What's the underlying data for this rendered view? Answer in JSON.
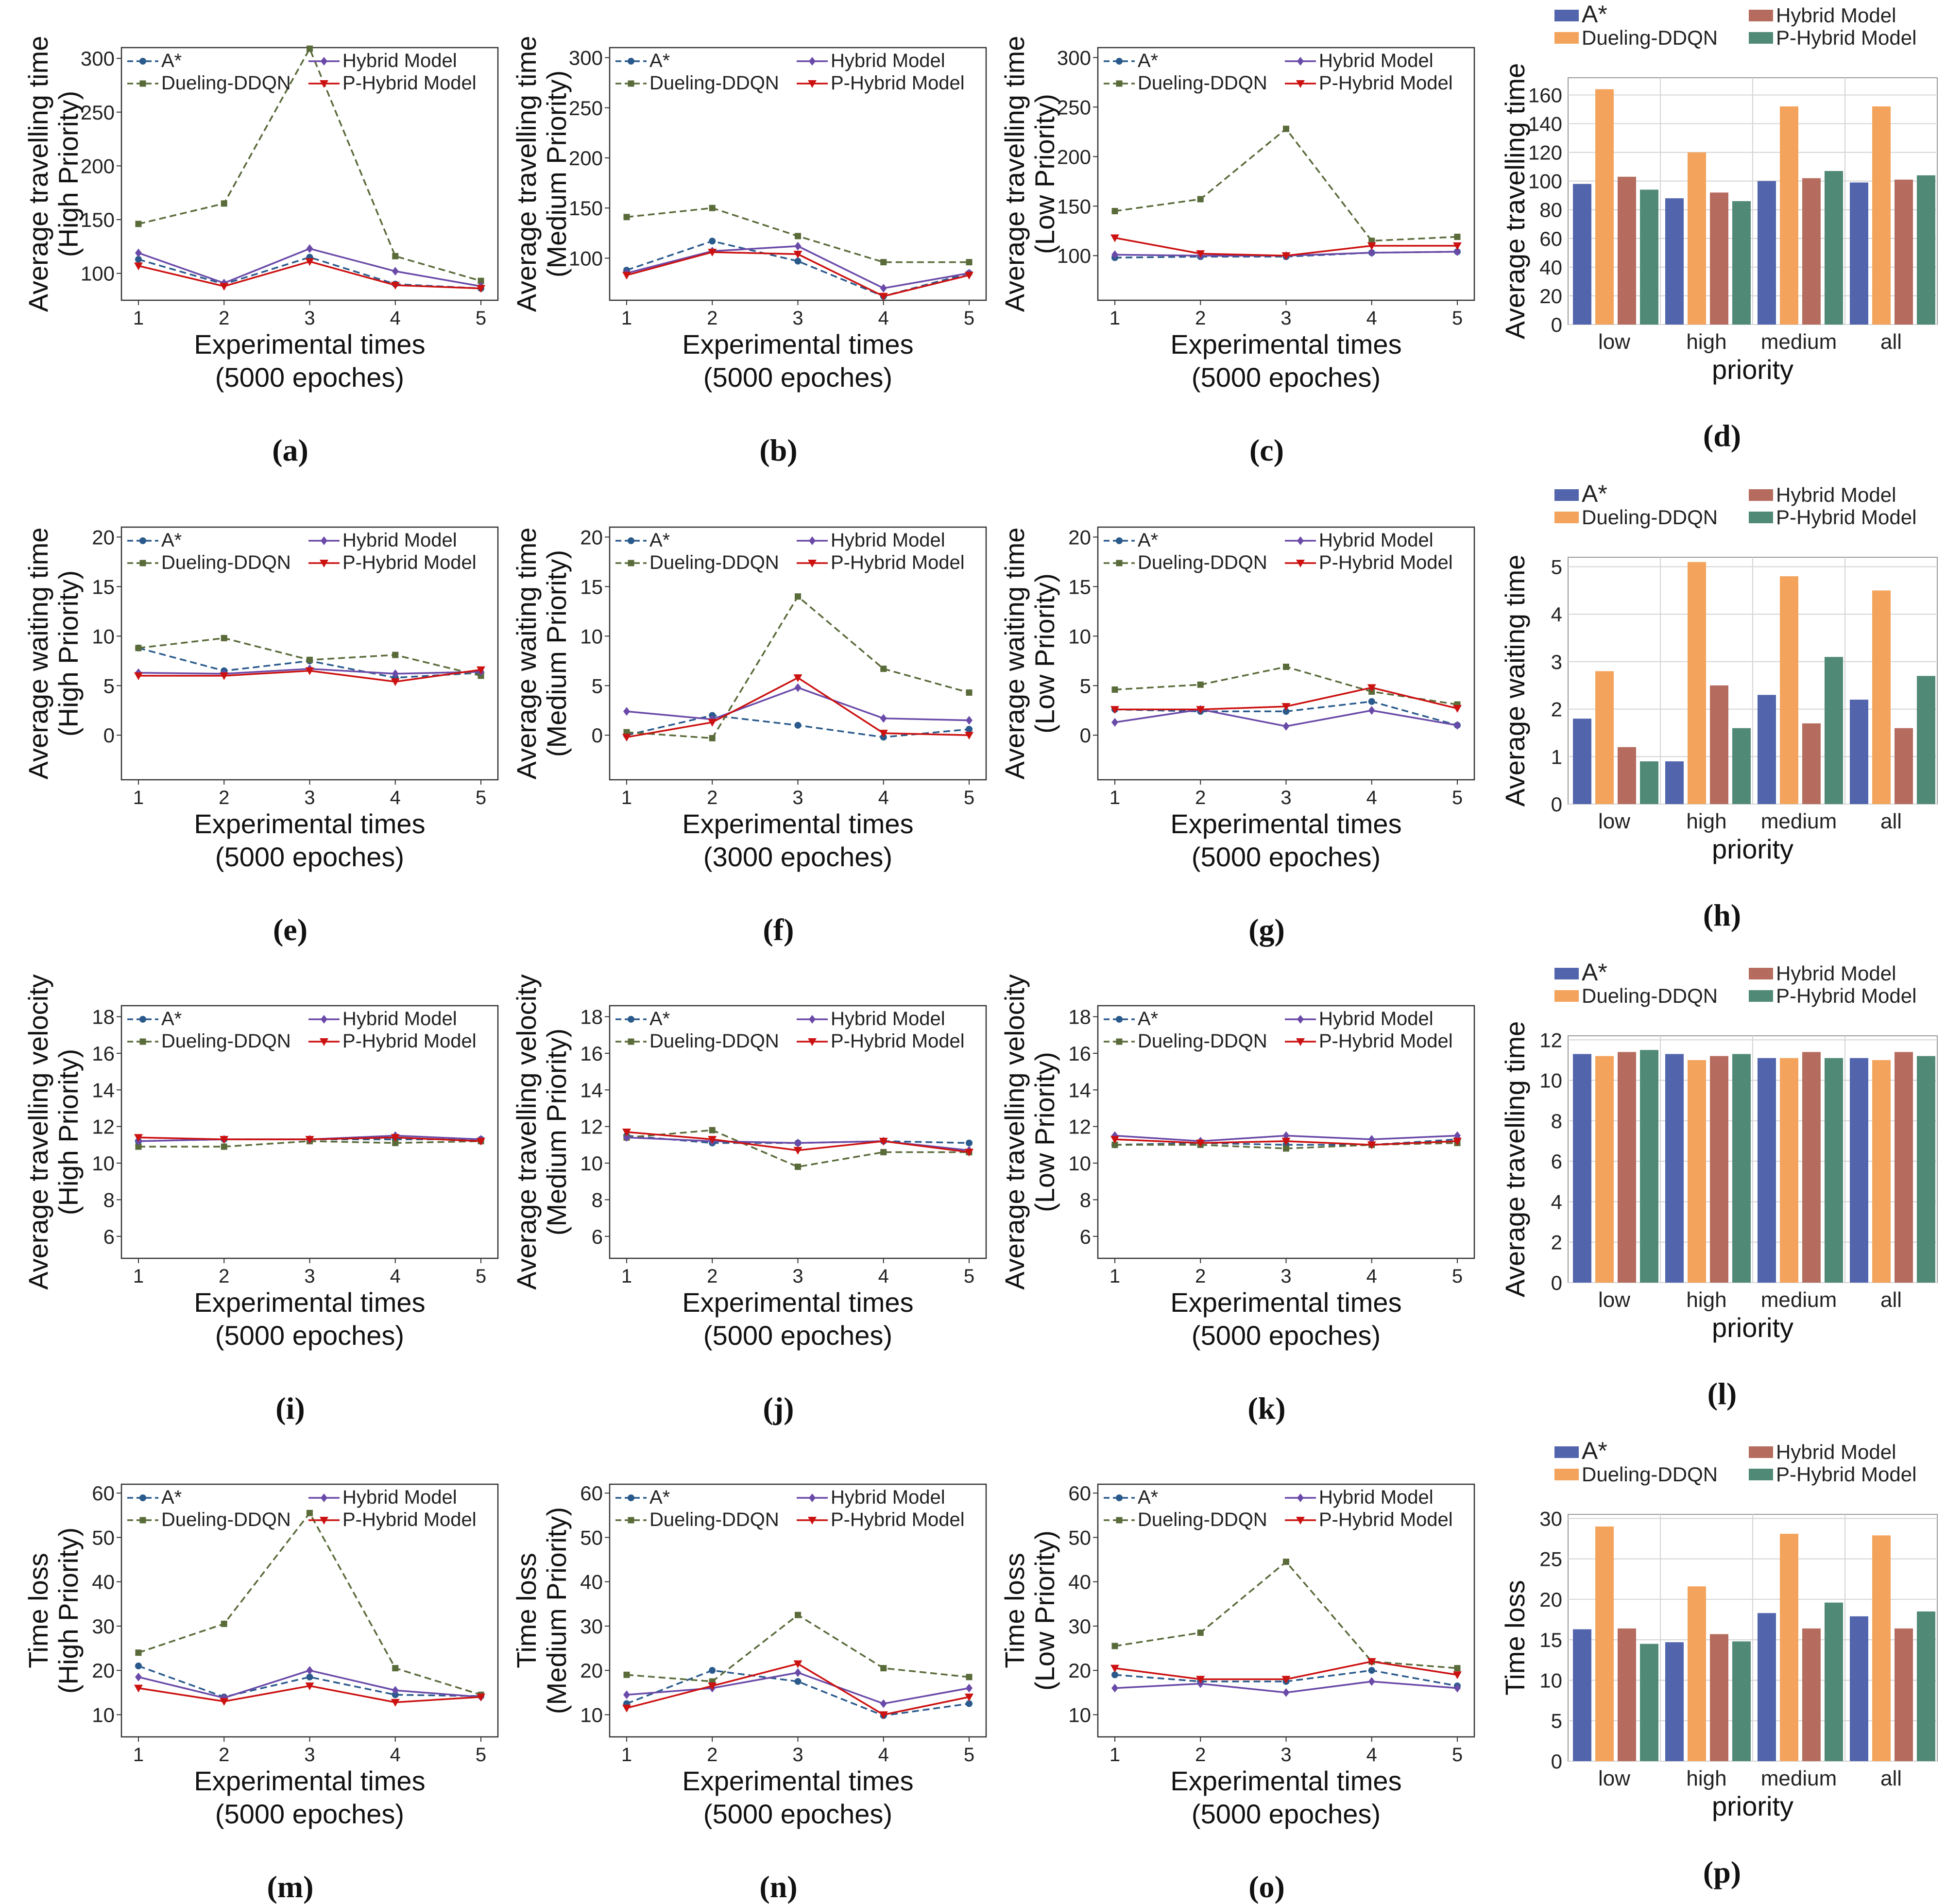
{
  "series_names": [
    "A*",
    "Dueling-DDQN",
    "Hybrid Model",
    "P-Hybrid Model"
  ],
  "line_colors": {
    "A*": "#2a5a8c",
    "Dueling-DDQN": "#5a6b3a",
    "Hybrid Model": "#6a4aa8",
    "P-Hybrid Model": "#cc1111"
  },
  "bar_colors": {
    "A*": "#5264ac",
    "Dueling-DDQN": "#f4a35c",
    "Hybrid Model": "#b56c5e",
    "P-Hybrid Model": "#508a76"
  },
  "icons": {
    "A*": "circle-marker-icon",
    "Dueling-DDQN": "square-marker-icon",
    "Hybrid Model": "diamond-marker-icon",
    "P-Hybrid Model": "triangle-down-marker-icon"
  },
  "chart_data": [
    {
      "id": "a",
      "letter": "(a)",
      "type": "line",
      "xlabel": "Experimental times",
      "xlabel2": "(5000 epoches)",
      "ylabel": "Average travelling time",
      "ylabel2": "(High Priority)",
      "ylim": [
        75,
        310
      ],
      "yticks": [
        100,
        150,
        200,
        250,
        300
      ],
      "x": [
        1,
        2,
        3,
        4,
        5
      ],
      "series": [
        {
          "name": "A*",
          "values": [
            113,
            90,
            115,
            90,
            86
          ]
        },
        {
          "name": "Dueling-DDQN",
          "values": [
            146,
            165,
            309,
            116,
            93
          ]
        },
        {
          "name": "Hybrid Model",
          "values": [
            119,
            91,
            123,
            102,
            88
          ]
        },
        {
          "name": "P-Hybrid Model",
          "values": [
            107,
            88,
            111,
            89,
            86
          ]
        }
      ]
    },
    {
      "id": "b",
      "letter": "(b)",
      "type": "line",
      "xlabel": "Experimental times",
      "xlabel2": "(5000 epoches)",
      "ylabel": "Average travelling time",
      "ylabel2": "(Medium Priority)",
      "ylim": [
        58,
        310
      ],
      "yticks": [
        100,
        150,
        200,
        250,
        300
      ],
      "x": [
        1,
        2,
        3,
        4,
        5
      ],
      "series": [
        {
          "name": "A*",
          "values": [
            88,
            117,
            97,
            62,
            85
          ]
        },
        {
          "name": "Dueling-DDQN",
          "values": [
            141,
            150,
            122,
            96,
            96
          ]
        },
        {
          "name": "Hybrid Model",
          "values": [
            85,
            107,
            112,
            70,
            85
          ]
        },
        {
          "name": "P-Hybrid Model",
          "values": [
            83,
            106,
            104,
            62,
            83
          ]
        }
      ]
    },
    {
      "id": "c",
      "letter": "(c)",
      "type": "line",
      "xlabel": "Experimental times",
      "xlabel2": "(5000 epoches)",
      "ylabel": "Average travelling time",
      "ylabel2": "(Low Priority)",
      "ylim": [
        55,
        310
      ],
      "yticks": [
        100,
        150,
        200,
        250,
        300
      ],
      "x": [
        1,
        2,
        3,
        4,
        5
      ],
      "series": [
        {
          "name": "A*",
          "values": [
            98,
            99,
            99,
            103,
            104
          ]
        },
        {
          "name": "Dueling-DDQN",
          "values": [
            145,
            157,
            228,
            115,
            119
          ]
        },
        {
          "name": "Hybrid Model",
          "values": [
            101,
            100,
            100,
            103,
            104
          ]
        },
        {
          "name": "P-Hybrid Model",
          "values": [
            118,
            102,
            100,
            110,
            110
          ]
        }
      ]
    },
    {
      "id": "d",
      "letter": "(d)",
      "type": "bar",
      "xlabel": "priority",
      "ylabel": "Average travelling time",
      "ylim": [
        0,
        172
      ],
      "yticks": [
        0,
        20,
        40,
        60,
        80,
        100,
        120,
        140,
        160
      ],
      "categories": [
        "low",
        "high",
        "medium",
        "all"
      ],
      "series": [
        {
          "name": "A*",
          "values": [
            98,
            88,
            100,
            99
          ]
        },
        {
          "name": "Dueling-DDQN",
          "values": [
            164,
            120,
            152,
            152
          ]
        },
        {
          "name": "Hybrid Model",
          "values": [
            103,
            92,
            102,
            101
          ]
        },
        {
          "name": "P-Hybrid Model",
          "values": [
            94,
            86,
            107,
            104
          ]
        }
      ]
    },
    {
      "id": "e",
      "letter": "(e)",
      "type": "line",
      "xlabel": "Experimental times",
      "xlabel2": "(5000 epoches)",
      "ylabel": "Average waiting time",
      "ylabel2": "(High Priority)",
      "ylim": [
        -4.5,
        21
      ],
      "yticks": [
        0,
        5,
        10,
        15,
        20
      ],
      "x": [
        1,
        2,
        3,
        4,
        5
      ],
      "series": [
        {
          "name": "A*",
          "values": [
            8.8,
            6.5,
            7.5,
            5.8,
            6.3
          ]
        },
        {
          "name": "Dueling-DDQN",
          "values": [
            8.8,
            9.8,
            7.6,
            8.1,
            6.0
          ]
        },
        {
          "name": "Hybrid Model",
          "values": [
            6.3,
            6.2,
            6.7,
            6.2,
            6.4
          ]
        },
        {
          "name": "P-Hybrid Model",
          "values": [
            6.0,
            6.0,
            6.5,
            5.4,
            6.6
          ]
        }
      ]
    },
    {
      "id": "f",
      "letter": "(f)",
      "type": "line",
      "xlabel": "Experimental times",
      "xlabel2": "(3000 epoches)",
      "ylabel": "Average waiting time",
      "ylabel2": "(Medium Priority)",
      "ylim": [
        -4.5,
        21
      ],
      "yticks": [
        0,
        5,
        10,
        15,
        20
      ],
      "x": [
        1,
        2,
        3,
        4,
        5
      ],
      "series": [
        {
          "name": "A*",
          "values": [
            0.0,
            2.0,
            1.0,
            -0.2,
            0.6
          ]
        },
        {
          "name": "Dueling-DDQN",
          "values": [
            0.3,
            -0.3,
            14.0,
            6.7,
            4.3
          ]
        },
        {
          "name": "Hybrid Model",
          "values": [
            2.4,
            1.6,
            4.8,
            1.7,
            1.5
          ]
        },
        {
          "name": "P-Hybrid Model",
          "values": [
            -0.2,
            1.3,
            5.8,
            0.2,
            0.0
          ]
        }
      ]
    },
    {
      "id": "g",
      "letter": "(g)",
      "type": "line",
      "xlabel": "Experimental times",
      "xlabel2": "(5000 epoches)",
      "ylabel": "Average waiting time",
      "ylabel2": "(Low Priority)",
      "ylim": [
        -4.5,
        21
      ],
      "yticks": [
        0,
        5,
        10,
        15,
        20
      ],
      "x": [
        1,
        2,
        3,
        4,
        5
      ],
      "series": [
        {
          "name": "A*",
          "values": [
            2.6,
            2.4,
            2.4,
            3.4,
            1.0
          ]
        },
        {
          "name": "Dueling-DDQN",
          "values": [
            4.6,
            5.1,
            6.9,
            4.4,
            3.1
          ]
        },
        {
          "name": "Hybrid Model",
          "values": [
            1.3,
            2.6,
            0.9,
            2.5,
            1.0
          ]
        },
        {
          "name": "P-Hybrid Model",
          "values": [
            2.6,
            2.6,
            2.9,
            4.8,
            2.7
          ]
        }
      ]
    },
    {
      "id": "h",
      "letter": "(h)",
      "type": "bar",
      "xlabel": "priority",
      "ylabel": "Average waiting time",
      "ylim": [
        0,
        5.2
      ],
      "yticks": [
        0,
        1,
        2,
        3,
        4,
        5
      ],
      "categories": [
        "low",
        "high",
        "medium",
        "all"
      ],
      "series": [
        {
          "name": "A*",
          "values": [
            1.8,
            0.9,
            2.3,
            2.2
          ]
        },
        {
          "name": "Dueling-DDQN",
          "values": [
            2.8,
            5.1,
            4.8,
            4.5
          ]
        },
        {
          "name": "Hybrid Model",
          "values": [
            1.2,
            2.5,
            1.7,
            1.6
          ]
        },
        {
          "name": "P-Hybrid Model",
          "values": [
            0.9,
            1.6,
            3.1,
            2.7
          ]
        }
      ]
    },
    {
      "id": "i",
      "letter": "(i)",
      "type": "line",
      "xlabel": "Experimental times",
      "xlabel2": "(5000 epoches)",
      "ylabel": "Average travelling velocity",
      "ylabel2": "(High Priority)",
      "ylim": [
        4.8,
        18.6
      ],
      "yticks": [
        6,
        8,
        10,
        12,
        14,
        16,
        18
      ],
      "x": [
        1,
        2,
        3,
        4,
        5
      ],
      "series": [
        {
          "name": "A*",
          "values": [
            11.2,
            11.3,
            11.3,
            11.3,
            11.3
          ]
        },
        {
          "name": "Dueling-DDQN",
          "values": [
            10.9,
            10.9,
            11.2,
            11.1,
            11.2
          ]
        },
        {
          "name": "Hybrid Model",
          "values": [
            11.2,
            11.3,
            11.3,
            11.5,
            11.3
          ]
        },
        {
          "name": "P-Hybrid Model",
          "values": [
            11.4,
            11.3,
            11.3,
            11.4,
            11.2
          ]
        }
      ]
    },
    {
      "id": "j",
      "letter": "(j)",
      "type": "line",
      "xlabel": "Experimental times",
      "xlabel2": "(5000 epoches)",
      "ylabel": "Average travelling velocity",
      "ylabel2": "(Medium Priority)",
      "ylim": [
        4.8,
        18.6
      ],
      "yticks": [
        6,
        8,
        10,
        12,
        14,
        16,
        18
      ],
      "x": [
        1,
        2,
        3,
        4,
        5
      ],
      "series": [
        {
          "name": "A*",
          "values": [
            11.5,
            11.1,
            11.1,
            11.2,
            11.1
          ]
        },
        {
          "name": "Dueling-DDQN",
          "values": [
            11.4,
            11.8,
            9.8,
            10.6,
            10.6
          ]
        },
        {
          "name": "Hybrid Model",
          "values": [
            11.4,
            11.2,
            11.1,
            11.2,
            10.7
          ]
        },
        {
          "name": "P-Hybrid Model",
          "values": [
            11.7,
            11.3,
            10.7,
            11.2,
            10.6
          ]
        }
      ]
    },
    {
      "id": "k",
      "letter": "(k)",
      "type": "line",
      "xlabel": "Experimental times",
      "xlabel2": "(5000 epoches)",
      "ylabel": "Average travelling velocity",
      "ylabel2": "(Low Priority)",
      "ylim": [
        4.8,
        18.6
      ],
      "yticks": [
        6,
        8,
        10,
        12,
        14,
        16,
        18
      ],
      "x": [
        1,
        2,
        3,
        4,
        5
      ],
      "series": [
        {
          "name": "A*",
          "values": [
            11.0,
            11.1,
            11.0,
            11.0,
            11.3
          ]
        },
        {
          "name": "Dueling-DDQN",
          "values": [
            11.0,
            11.0,
            10.8,
            11.0,
            11.1
          ]
        },
        {
          "name": "Hybrid Model",
          "values": [
            11.5,
            11.2,
            11.5,
            11.3,
            11.5
          ]
        },
        {
          "name": "P-Hybrid Model",
          "values": [
            11.3,
            11.1,
            11.2,
            11.0,
            11.2
          ]
        }
      ]
    },
    {
      "id": "l",
      "letter": "(l)",
      "type": "bar",
      "xlabel": "priority",
      "ylabel": "Average travelling time",
      "ylim": [
        0,
        12.2
      ],
      "yticks": [
        0,
        2,
        4,
        6,
        8,
        10,
        12
      ],
      "categories": [
        "low",
        "high",
        "medium",
        "all"
      ],
      "series": [
        {
          "name": "A*",
          "values": [
            11.3,
            11.3,
            11.1,
            11.1
          ]
        },
        {
          "name": "Dueling-DDQN",
          "values": [
            11.2,
            11.0,
            11.1,
            11.0
          ]
        },
        {
          "name": "Hybrid Model",
          "values": [
            11.4,
            11.2,
            11.4,
            11.4
          ]
        },
        {
          "name": "P-Hybrid Model",
          "values": [
            11.5,
            11.3,
            11.1,
            11.2
          ]
        }
      ]
    },
    {
      "id": "m",
      "letter": "(m)",
      "type": "line",
      "xlabel": "Experimental times",
      "xlabel2": "(5000 epoches)",
      "ylabel": "Time loss",
      "ylabel2": "(High Priority)",
      "ylim": [
        5,
        62
      ],
      "yticks": [
        10,
        20,
        30,
        40,
        50,
        60
      ],
      "x": [
        1,
        2,
        3,
        4,
        5
      ],
      "series": [
        {
          "name": "A*",
          "values": [
            21,
            14,
            18.5,
            14.5,
            14.2
          ]
        },
        {
          "name": "Dueling-DDQN",
          "values": [
            24,
            30.5,
            55.5,
            20.5,
            14.5
          ]
        },
        {
          "name": "Hybrid Model",
          "values": [
            18.5,
            13.8,
            20,
            15.5,
            14
          ]
        },
        {
          "name": "P-Hybrid Model",
          "values": [
            16,
            13,
            16.5,
            12.8,
            14
          ]
        }
      ]
    },
    {
      "id": "n",
      "letter": "(n)",
      "type": "line",
      "xlabel": "Experimental times",
      "xlabel2": "(5000 epoches)",
      "ylabel": "Time loss",
      "ylabel2": "(Medium Priority)",
      "ylim": [
        5,
        62
      ],
      "yticks": [
        10,
        20,
        30,
        40,
        50,
        60
      ],
      "x": [
        1,
        2,
        3,
        4,
        5
      ],
      "series": [
        {
          "name": "A*",
          "values": [
            12.5,
            20,
            17.5,
            9.8,
            12.5
          ]
        },
        {
          "name": "Dueling-DDQN",
          "values": [
            19,
            17.5,
            32.5,
            20.5,
            18.5
          ]
        },
        {
          "name": "Hybrid Model",
          "values": [
            14.5,
            16,
            19.5,
            12.5,
            16
          ]
        },
        {
          "name": "P-Hybrid Model",
          "values": [
            11.5,
            16.5,
            21.5,
            10,
            14
          ]
        }
      ]
    },
    {
      "id": "o",
      "letter": "(o)",
      "type": "line",
      "xlabel": "Experimental times",
      "xlabel2": "(5000 epoches)",
      "ylabel": "Time loss",
      "ylabel2": "(Low Priority)",
      "ylim": [
        5,
        62
      ],
      "yticks": [
        10,
        20,
        30,
        40,
        50,
        60
      ],
      "x": [
        1,
        2,
        3,
        4,
        5
      ],
      "series": [
        {
          "name": "A*",
          "values": [
            19,
            17.5,
            17.5,
            20,
            16.5
          ]
        },
        {
          "name": "Dueling-DDQN",
          "values": [
            25.5,
            28.5,
            44.5,
            22,
            20.5
          ]
        },
        {
          "name": "Hybrid Model",
          "values": [
            16,
            17,
            15,
            17.5,
            16
          ]
        },
        {
          "name": "P-Hybrid Model",
          "values": [
            20.5,
            18,
            18,
            22,
            19
          ]
        }
      ]
    },
    {
      "id": "p",
      "letter": "(p)",
      "type": "bar",
      "xlabel": "priority",
      "ylabel": "Time loss",
      "ylim": [
        0,
        30.5
      ],
      "yticks": [
        0,
        5,
        10,
        15,
        20,
        25,
        30
      ],
      "categories": [
        "low",
        "high",
        "medium",
        "all"
      ],
      "series": [
        {
          "name": "A*",
          "values": [
            16.3,
            14.7,
            18.3,
            17.9
          ]
        },
        {
          "name": "Dueling-DDQN",
          "values": [
            29.0,
            21.6,
            28.1,
            27.9
          ]
        },
        {
          "name": "Hybrid Model",
          "values": [
            16.4,
            15.7,
            16.4,
            16.4
          ]
        },
        {
          "name": "P-Hybrid Model",
          "values": [
            14.5,
            14.8,
            19.6,
            18.5
          ]
        }
      ]
    }
  ]
}
